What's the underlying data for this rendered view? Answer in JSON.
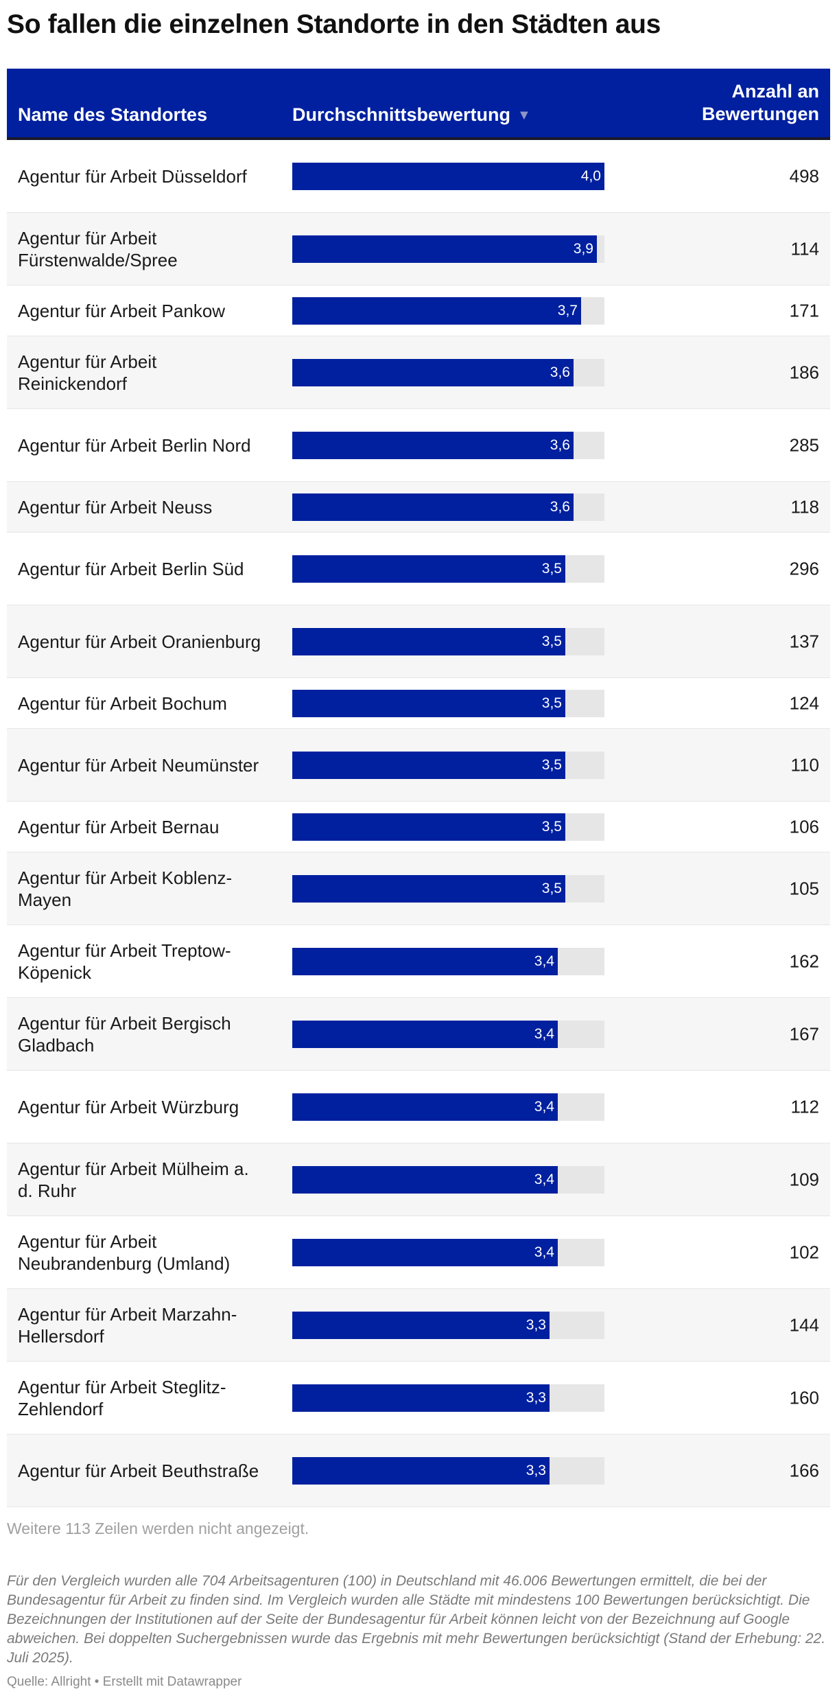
{
  "title": "So fallen die einzelnen Standorte in den Städten aus",
  "header": {
    "name": "Name des Standortes",
    "rating": "Durchschnittsbewertung",
    "sort_icon": "sort-down-triangle",
    "count": "Anzahl an Bewertungen"
  },
  "colors": {
    "header_bg": "#00209f",
    "bar": "#00209f",
    "track": "#e6e6e6"
  },
  "chart_data": {
    "type": "table",
    "columns": [
      "Name des Standortes",
      "Durchschnittsbewertung",
      "Anzahl an Bewertungen"
    ],
    "rating_max": 4.0,
    "rows": [
      {
        "name": "Agentur für Arbeit Düsseldorf",
        "rating": 4.0,
        "rating_label": "4,0",
        "count": "498"
      },
      {
        "name": "Agentur für Arbeit Fürstenwalde/Spree",
        "rating": 3.9,
        "rating_label": "3,9",
        "count": "114"
      },
      {
        "name": "Agentur für Arbeit Pankow",
        "rating": 3.7,
        "rating_label": "3,7",
        "count": "171"
      },
      {
        "name": "Agentur für Arbeit Reinickendorf",
        "rating": 3.6,
        "rating_label": "3,6",
        "count": "186"
      },
      {
        "name": "Agentur für Arbeit Berlin Nord",
        "rating": 3.6,
        "rating_label": "3,6",
        "count": "285"
      },
      {
        "name": "Agentur für Arbeit Neuss",
        "rating": 3.6,
        "rating_label": "3,6",
        "count": "118"
      },
      {
        "name": "Agentur für Arbeit Berlin Süd",
        "rating": 3.5,
        "rating_label": "3,5",
        "count": "296"
      },
      {
        "name": "Agentur für Arbeit Oranienburg",
        "rating": 3.5,
        "rating_label": "3,5",
        "count": "137"
      },
      {
        "name": "Agentur für Arbeit Bochum",
        "rating": 3.5,
        "rating_label": "3,5",
        "count": "124"
      },
      {
        "name": "Agentur für Arbeit Neumünster",
        "rating": 3.5,
        "rating_label": "3,5",
        "count": "110"
      },
      {
        "name": "Agentur für Arbeit Bernau",
        "rating": 3.5,
        "rating_label": "3,5",
        "count": "106"
      },
      {
        "name": "Agentur für Arbeit Koblenz-Mayen",
        "rating": 3.5,
        "rating_label": "3,5",
        "count": "105"
      },
      {
        "name": "Agentur für Arbeit Treptow-Köpenick",
        "rating": 3.4,
        "rating_label": "3,4",
        "count": "162"
      },
      {
        "name": "Agentur für Arbeit Bergisch Gladbach",
        "rating": 3.4,
        "rating_label": "3,4",
        "count": "167"
      },
      {
        "name": "Agentur für Arbeit Würzburg",
        "rating": 3.4,
        "rating_label": "3,4",
        "count": "112"
      },
      {
        "name": "Agentur für Arbeit Mülheim a. d. Ruhr",
        "rating": 3.4,
        "rating_label": "3,4",
        "count": "109"
      },
      {
        "name": "Agentur für Arbeit Neubrandenburg (Umland)",
        "rating": 3.4,
        "rating_label": "3,4",
        "count": "102"
      },
      {
        "name": "Agentur für Arbeit Marzahn-Hellersdorf",
        "rating": 3.3,
        "rating_label": "3,3",
        "count": "144"
      },
      {
        "name": "Agentur für Arbeit Steglitz-Zehlendorf",
        "rating": 3.3,
        "rating_label": "3,3",
        "count": "160"
      },
      {
        "name": "Agentur für Arbeit Beuthstraße",
        "rating": 3.3,
        "rating_label": "3,3",
        "count": "166"
      }
    ]
  },
  "more_rows": "Weitere 113 Zeilen werden nicht angezeigt.",
  "notes": "Für den Vergleich wurden alle 704 Arbeitsagenturen (100) in Deutschland mit 46.006 Bewertungen ermittelt, die bei der Bundesagentur für Arbeit zu finden sind. Im Vergleich wurden alle Städte mit mindestens 100 Bewertungen berücksichtigt. Die Bezeichnungen der Institutionen auf der Seite der Bundesagentur für Arbeit können leicht von der Bezeichnung auf Google abweichen. Bei doppelten Suchergebnissen wurde das Ergebnis mit mehr Bewertungen berücksichtigt (Stand der Erhebung: 22. Juli 2025).",
  "source": "Quelle: Allright • Erstellt mit Datawrapper"
}
